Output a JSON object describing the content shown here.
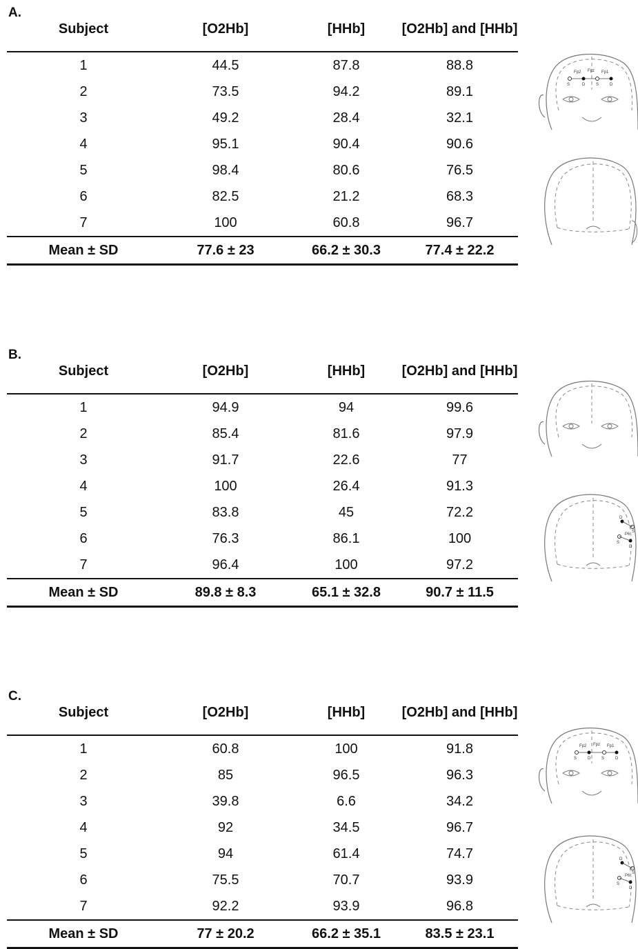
{
  "columns": [
    "Subject",
    "[O2Hb]",
    "[HHb]",
    "[O2Hb] and [HHb]"
  ],
  "panels": [
    {
      "label": "A.",
      "rows": [
        [
          "1",
          "44.5",
          "87.8",
          "88.8"
        ],
        [
          "2",
          "73.5",
          "94.2",
          "89.1"
        ],
        [
          "3",
          "49.2",
          "28.4",
          "32.1"
        ],
        [
          "4",
          "95.1",
          "90.4",
          "90.6"
        ],
        [
          "5",
          "98.4",
          "80.6",
          "76.5"
        ],
        [
          "6",
          "82.5",
          "21.2",
          "68.3"
        ],
        [
          "7",
          "100",
          "60.8",
          "96.7"
        ]
      ],
      "mean": [
        "Mean ± SD",
        "77.6 ± 23",
        "66.2 ± 30.3",
        "77.4 ± 22.2"
      ],
      "figure_labels": [
        "Fp2",
        "Fpz",
        "Fp1",
        "S",
        "D",
        "S",
        "D"
      ]
    },
    {
      "label": "B.",
      "rows": [
        [
          "1",
          "94.9",
          "94",
          "99.6"
        ],
        [
          "2",
          "85.4",
          "81.6",
          "97.9"
        ],
        [
          "3",
          "91.7",
          "22.6",
          "77"
        ],
        [
          "4",
          "100",
          "26.4",
          "91.3"
        ],
        [
          "5",
          "83.8",
          "45",
          "72.2"
        ],
        [
          "6",
          "76.3",
          "86.1",
          "100"
        ],
        [
          "7",
          "96.4",
          "100",
          "97.2"
        ]
      ],
      "mean": [
        "Mean ± SD",
        "89.8 ± 8.3",
        "65.1 ± 32.8",
        "90.7 ± 11.5"
      ],
      "figure_labels": [
        "D",
        "S",
        "P6",
        "S",
        "D"
      ]
    },
    {
      "label": "C.",
      "rows": [
        [
          "1",
          "60.8",
          "100",
          "91.8"
        ],
        [
          "2",
          "85",
          "96.5",
          "96.3"
        ],
        [
          "3",
          "39.8",
          "6.6",
          "34.2"
        ],
        [
          "4",
          "92",
          "34.5",
          "96.7"
        ],
        [
          "5",
          "94",
          "61.4",
          "74.7"
        ],
        [
          "6",
          "75.5",
          "70.7",
          "93.9"
        ],
        [
          "7",
          "92.2",
          "93.9",
          "96.8"
        ]
      ],
      "mean": [
        "Mean ± SD",
        "77 ± 20.2",
        "66.2 ± 35.1",
        "83.5 ± 23.1"
      ],
      "figure_labels": [
        "Fp2",
        "Fpz",
        "Fp1",
        "S",
        "D",
        "S",
        "D",
        "D",
        "S",
        "P6",
        "S",
        "D"
      ]
    }
  ]
}
